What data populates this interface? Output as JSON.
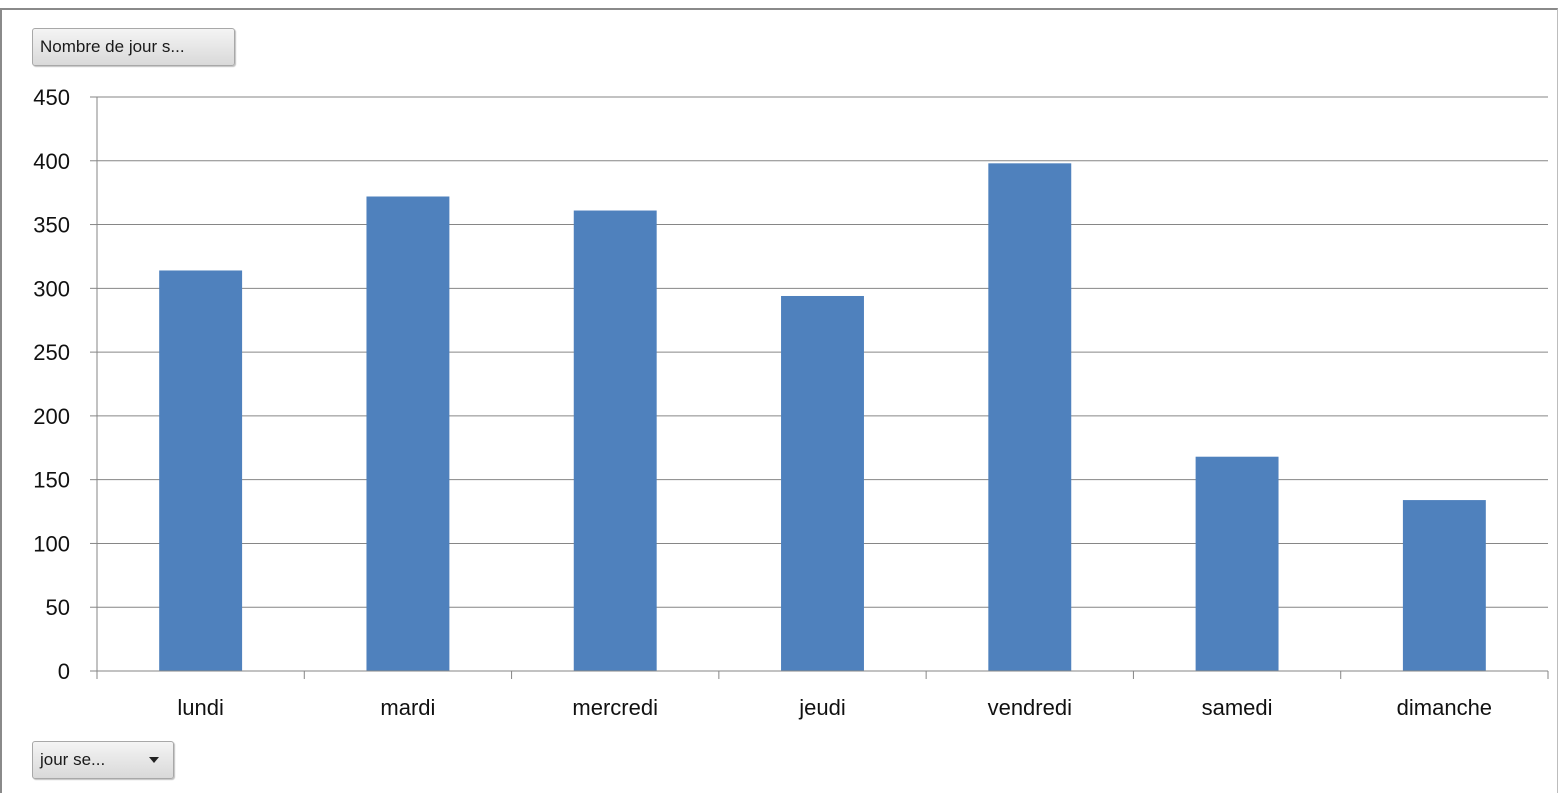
{
  "controls": {
    "value_field_label": "Nombre de jour s...",
    "axis_field_label": "jour se...",
    "axis_field_icon": "chevron-down-icon"
  },
  "colors": {
    "bar": "#4F81BD",
    "gridline": "#868686"
  },
  "chart_data": {
    "type": "bar",
    "title": "",
    "xlabel": "",
    "ylabel": "",
    "categories": [
      "lundi",
      "mardi",
      "mercredi",
      "jeudi",
      "vendredi",
      "samedi",
      "dimanche"
    ],
    "values": [
      314,
      372,
      361,
      294,
      398,
      168,
      134
    ],
    "ylim": [
      0,
      450
    ],
    "yticks": [
      0,
      50,
      100,
      150,
      200,
      250,
      300,
      350,
      400,
      450
    ],
    "grid": true,
    "legend": "none"
  }
}
